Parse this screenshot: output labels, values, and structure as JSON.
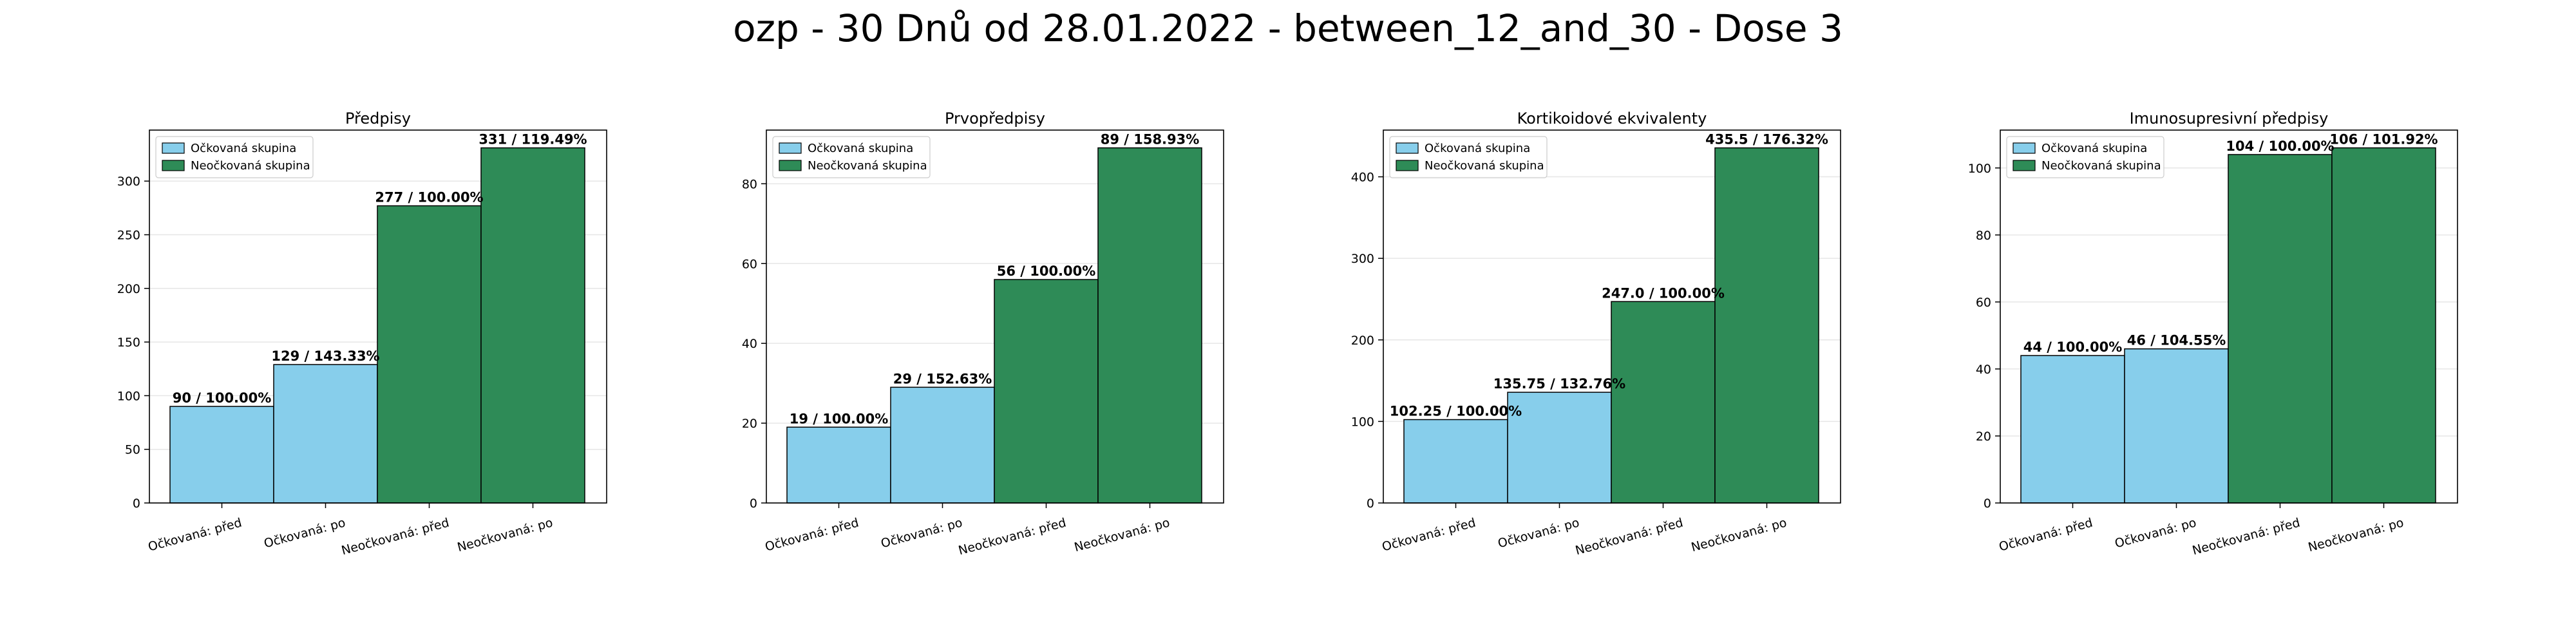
{
  "figure": {
    "title": "ozp - 30 Dnů od 28.01.2022 - between_12_and_30 - Dose 3"
  },
  "colors": {
    "vaccinated": "#87ceeb",
    "unvaccinated": "#2e8b57",
    "edge": "#000000",
    "grid": "#e6e6e6"
  },
  "chart_data": [
    {
      "type": "bar",
      "title": "Předpisy",
      "categories": [
        "Očkovaná: před",
        "Očkovaná: po",
        "Neočkovaná: před",
        "Neočkovaná: po"
      ],
      "values": [
        90,
        129,
        277,
        331
      ],
      "labels": [
        "90 / 100.00%",
        "129 / 143.33%",
        "277 / 100.00%",
        "331 / 119.49%"
      ],
      "groups": [
        "vaccinated",
        "vaccinated",
        "unvaccinated",
        "unvaccinated"
      ],
      "legend": [
        "Očkovaná skupina",
        "Neočkovaná skupina"
      ],
      "legend_position": "top-left",
      "ylim": [
        0,
        347.55
      ],
      "yticks": [
        0,
        50,
        100,
        150,
        200,
        250,
        300
      ],
      "grid": true
    },
    {
      "type": "bar",
      "title": "Prvopředpisy",
      "categories": [
        "Očkovaná: před",
        "Očkovaná: po",
        "Neočkovaná: před",
        "Neočkovaná: po"
      ],
      "values": [
        19,
        29,
        56,
        89
      ],
      "labels": [
        "19 / 100.00%",
        "29 / 152.63%",
        "56 / 100.00%",
        "89 / 158.93%"
      ],
      "groups": [
        "vaccinated",
        "vaccinated",
        "unvaccinated",
        "unvaccinated"
      ],
      "legend": [
        "Očkovaná skupina",
        "Neočkovaná skupina"
      ],
      "legend_position": "top-left",
      "ylim": [
        0,
        93.45
      ],
      "yticks": [
        0,
        20,
        40,
        60,
        80
      ],
      "grid": true
    },
    {
      "type": "bar",
      "title": "Kortikoidové ekvivalenty",
      "categories": [
        "Očkovaná: před",
        "Očkovaná: po",
        "Neočkovaná: před",
        "Neočkovaná: po"
      ],
      "values": [
        102.25,
        135.75,
        247.0,
        435.5
      ],
      "labels": [
        "102.25 / 100.00%",
        "135.75 / 132.76%",
        "247.0 / 100.00%",
        "435.5 / 176.32%"
      ],
      "groups": [
        "vaccinated",
        "vaccinated",
        "unvaccinated",
        "unvaccinated"
      ],
      "legend": [
        "Očkovaná skupina",
        "Neočkovaná skupina"
      ],
      "legend_position": "top-left",
      "ylim": [
        0,
        457.3
      ],
      "yticks": [
        0,
        100,
        200,
        300,
        400
      ],
      "grid": true
    },
    {
      "type": "bar",
      "title": "Imunosupresivní předpisy",
      "categories": [
        "Očkovaná: před",
        "Očkovaná: po",
        "Neočkovaná: před",
        "Neočkovaná: po"
      ],
      "values": [
        44,
        46,
        104,
        106
      ],
      "labels": [
        "44 / 100.00%",
        "46 / 104.55%",
        "104 / 100.00%",
        "106 / 101.92%"
      ],
      "groups": [
        "vaccinated",
        "vaccinated",
        "unvaccinated",
        "unvaccinated"
      ],
      "legend": [
        "Očkovaná skupina",
        "Neočkovaná skupina"
      ],
      "legend_position": "top-left",
      "ylim": [
        0,
        111.3
      ],
      "yticks": [
        0,
        20,
        40,
        60,
        80,
        100
      ],
      "grid": true
    }
  ]
}
